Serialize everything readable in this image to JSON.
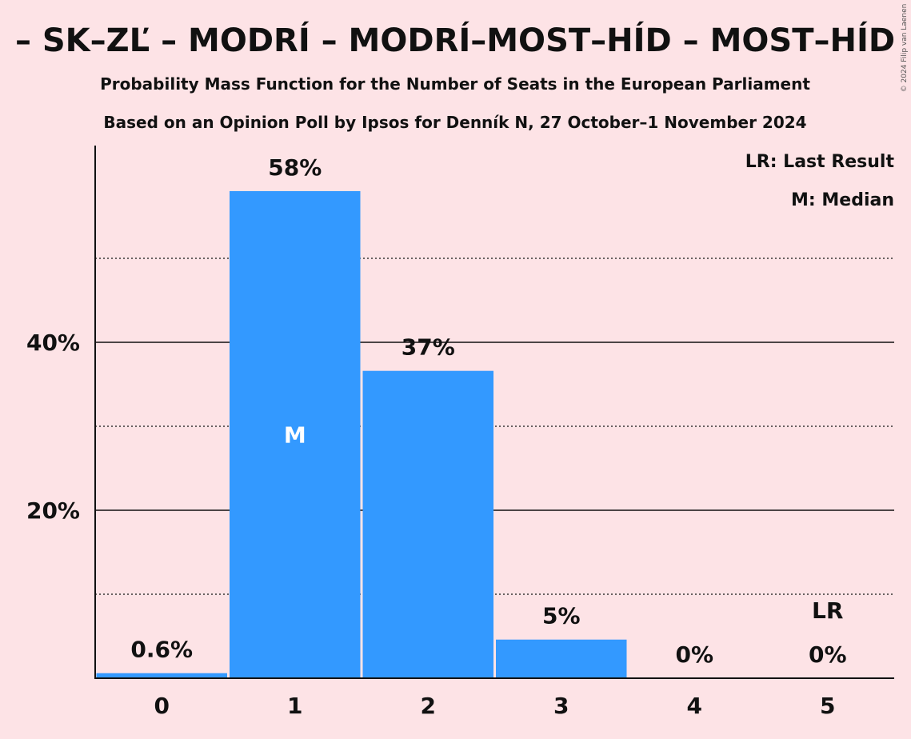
{
  "header": {
    "title": "– SK–ZĽ – MODRÍ – MODRÍ–MOST–HÍD – MOST–HÍD",
    "subtitle1": "Probability Mass Function for the Number of Seats in the European Parliament",
    "subtitle2": "Based on an Opinion Poll by Ipsos for Denník N, 27 October–1 November 2024",
    "copyright": "© 2024 Filip van Laenen"
  },
  "legend": {
    "last_result": "LR: Last Result",
    "median": "M: Median"
  },
  "chart_data": {
    "type": "bar",
    "categories": [
      "0",
      "1",
      "2",
      "3",
      "4",
      "5"
    ],
    "values": [
      0.6,
      58,
      36.6,
      4.6,
      0,
      0
    ],
    "data_labels": [
      "0.6%",
      "58%",
      "37%",
      "5%",
      "0%",
      "0%"
    ],
    "ylim": [
      0,
      63
    ],
    "yticks": [
      {
        "value": 20,
        "label": "20%"
      },
      {
        "value": 40,
        "label": "40%"
      }
    ],
    "minor_gridlines": [
      10,
      30,
      50
    ],
    "median_category": "1",
    "median_marker": "M",
    "last_result_category": "5",
    "last_result_marker": "LR",
    "bar_color": "#3399ff"
  }
}
